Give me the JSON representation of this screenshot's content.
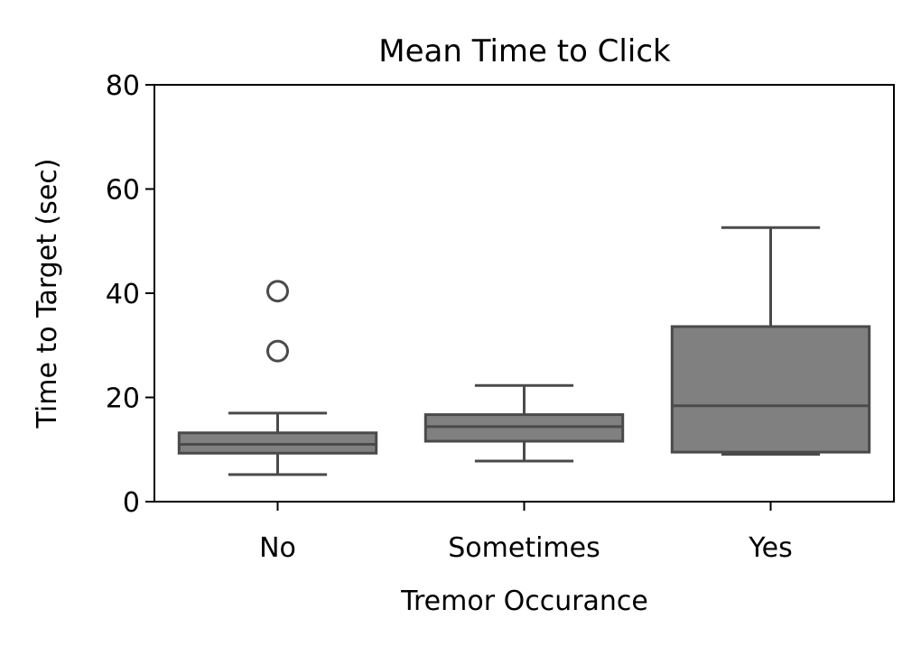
{
  "chart_data": {
    "type": "box",
    "title": "Mean Time to Click",
    "xlabel": "Tremor Occurance",
    "ylabel": "Time to Target (sec)",
    "ylim": [
      0,
      80
    ],
    "yticks": [
      0,
      20,
      40,
      60,
      80
    ],
    "grid": false,
    "categories": [
      "No",
      "Sometimes",
      "Yes"
    ],
    "boxes": [
      {
        "category": "No",
        "whisker_low": 5.2,
        "q1": 9.3,
        "median": 11.0,
        "q3": 13.2,
        "whisker_high": 17.0,
        "outliers": [
          28.9,
          40.4
        ]
      },
      {
        "category": "Sometimes",
        "whisker_low": 7.8,
        "q1": 11.6,
        "median": 14.4,
        "q3": 16.7,
        "whisker_high": 22.3,
        "outliers": []
      },
      {
        "category": "Yes",
        "whisker_low": 9.1,
        "q1": 9.5,
        "median": 18.4,
        "q3": 33.6,
        "whisker_high": 52.6,
        "outliers": []
      }
    ],
    "colors": {
      "box_fill": "#808080",
      "box_edge": "#4a4a4a",
      "axis": "#000000",
      "text": "#000000"
    }
  }
}
